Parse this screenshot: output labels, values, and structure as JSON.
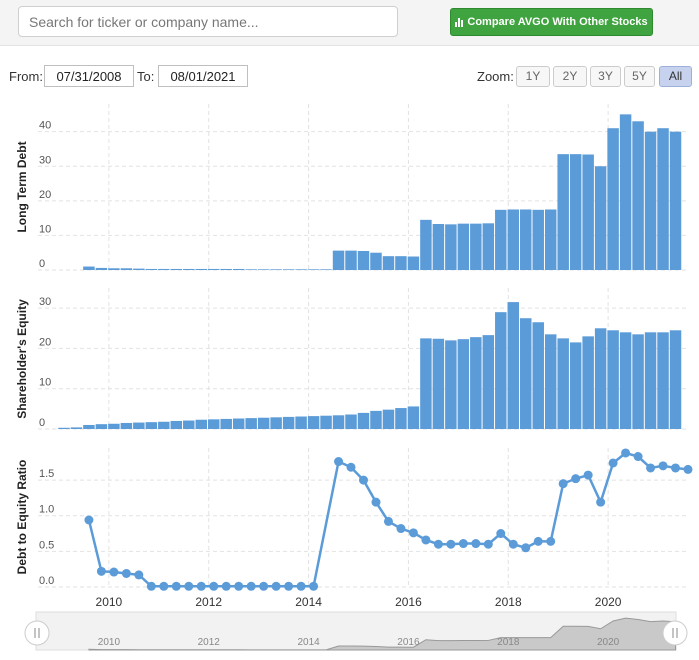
{
  "search": {
    "placeholder": "Search for ticker or company name..."
  },
  "compare_button": {
    "label": "Compare AVGO With Other Stocks",
    "icon": "bar-chart-icon",
    "color": "#3fa33f"
  },
  "range": {
    "from_label": "From:",
    "from_value": "07/31/2008",
    "to_label": "To:",
    "to_value": "08/01/2021"
  },
  "zoom": {
    "label": "Zoom:",
    "options": [
      "1Y",
      "2Y",
      "3Y",
      "5Y",
      "All"
    ],
    "selected": "All"
  },
  "colors": {
    "series": "#5b9bd8",
    "navigator": "#999999"
  },
  "chart_data": [
    {
      "type": "bar",
      "ylabel": "Long Term Debt",
      "ylim": [
        0,
        48
      ],
      "yticks": [
        0,
        10,
        20,
        30,
        40
      ],
      "x": [
        2009.6,
        2009.85,
        2010.1,
        2010.35,
        2010.6,
        2010.85,
        2011.1,
        2011.35,
        2011.6,
        2011.85,
        2012.1,
        2012.35,
        2012.6,
        2012.85,
        2013.1,
        2013.35,
        2013.6,
        2013.85,
        2014.1,
        2014.35,
        2014.6,
        2014.85,
        2015.1,
        2015.35,
        2015.6,
        2015.85,
        2016.1,
        2016.35,
        2016.6,
        2016.85,
        2017.1,
        2017.35,
        2017.6,
        2017.85,
        2018.1,
        2018.35,
        2018.6,
        2018.85,
        2019.1,
        2019.35,
        2019.6,
        2019.85,
        2020.1,
        2020.35,
        2020.6,
        2020.85,
        2021.1,
        2021.35
      ],
      "values": [
        1.0,
        0.6,
        0.5,
        0.5,
        0.4,
        0.3,
        0.3,
        0.3,
        0.3,
        0.3,
        0.3,
        0.3,
        0.3,
        0.2,
        0.2,
        0.2,
        0.2,
        0.2,
        0.2,
        0.2,
        5.6,
        5.6,
        5.5,
        5.0,
        4.0,
        4.0,
        3.9,
        14.5,
        13.3,
        13.2,
        13.4,
        13.4,
        13.5,
        17.4,
        17.5,
        17.5,
        17.4,
        17.5,
        33.5,
        33.5,
        33.4,
        30.0,
        41.0,
        45.0,
        43.0,
        40.0,
        41.0,
        40.0
      ]
    },
    {
      "type": "bar",
      "ylabel": "Shareholder's Equity",
      "ylim": [
        0,
        35
      ],
      "yticks": [
        0,
        10,
        20,
        30
      ],
      "x": [
        2009.1,
        2009.35,
        2009.6,
        2009.85,
        2010.1,
        2010.35,
        2010.6,
        2010.85,
        2011.1,
        2011.35,
        2011.6,
        2011.85,
        2012.1,
        2012.35,
        2012.6,
        2012.85,
        2013.1,
        2013.35,
        2013.6,
        2013.85,
        2014.1,
        2014.35,
        2014.6,
        2014.85,
        2015.1,
        2015.35,
        2015.6,
        2015.85,
        2016.1,
        2016.35,
        2016.6,
        2016.85,
        2017.1,
        2017.35,
        2017.6,
        2017.85,
        2018.1,
        2018.35,
        2018.6,
        2018.85,
        2019.1,
        2019.35,
        2019.6,
        2019.85,
        2020.1,
        2020.35,
        2020.6,
        2020.85,
        2021.1,
        2021.35
      ],
      "values": [
        0.3,
        0.4,
        1.0,
        1.2,
        1.3,
        1.5,
        1.6,
        1.7,
        1.8,
        2.0,
        2.1,
        2.3,
        2.4,
        2.5,
        2.6,
        2.7,
        2.8,
        2.9,
        3.0,
        3.1,
        3.2,
        3.3,
        3.4,
        3.6,
        4.0,
        4.5,
        4.8,
        5.2,
        5.6,
        22.5,
        22.4,
        22.0,
        22.3,
        22.8,
        23.3,
        29.0,
        31.5,
        27.5,
        26.5,
        23.5,
        22.5,
        21.5,
        23.0,
        25.0,
        24.5,
        24.0,
        23.5,
        24.0,
        24.0,
        24.5
      ]
    },
    {
      "type": "line",
      "ylabel": "Debt to Equity Ratio",
      "ylim": [
        0,
        1.95
      ],
      "yticks": [
        "0.0",
        "0.5",
        "1.0",
        "1.5"
      ],
      "x": [
        2009.6,
        2009.85,
        2010.1,
        2010.35,
        2010.6,
        2010.85,
        2011.1,
        2011.35,
        2011.6,
        2011.85,
        2012.1,
        2012.35,
        2012.6,
        2012.85,
        2013.1,
        2013.35,
        2013.6,
        2013.85,
        2014.1,
        2014.6,
        2014.85,
        2015.1,
        2015.35,
        2015.6,
        2015.85,
        2016.1,
        2016.35,
        2016.6,
        2016.85,
        2017.1,
        2017.35,
        2017.6,
        2017.85,
        2018.1,
        2018.35,
        2018.6,
        2018.85,
        2019.1,
        2019.35,
        2019.6,
        2019.85,
        2020.1,
        2020.35,
        2020.6,
        2020.85,
        2021.1,
        2021.35,
        2021.6
      ],
      "values": [
        0.94,
        0.22,
        0.21,
        0.19,
        0.17,
        0.01,
        0.01,
        0.01,
        0.01,
        0.01,
        0.01,
        0.01,
        0.01,
        0.01,
        0.01,
        0.01,
        0.01,
        0.01,
        0.01,
        1.76,
        1.68,
        1.5,
        1.19,
        0.92,
        0.82,
        0.76,
        0.66,
        0.6,
        0.6,
        0.61,
        0.61,
        0.6,
        0.75,
        0.6,
        0.55,
        0.64,
        0.64,
        1.45,
        1.52,
        1.57,
        1.19,
        1.74,
        1.88,
        1.83,
        1.67,
        1.7,
        1.67,
        1.65
      ]
    }
  ],
  "x_axis": {
    "ticks": [
      2010,
      2012,
      2014,
      2016,
      2018,
      2020
    ],
    "range": [
      2008.58,
      2021.58
    ]
  },
  "navigator": {
    "ticks": [
      2010,
      2012,
      2014,
      2016,
      2018,
      2020
    ]
  }
}
